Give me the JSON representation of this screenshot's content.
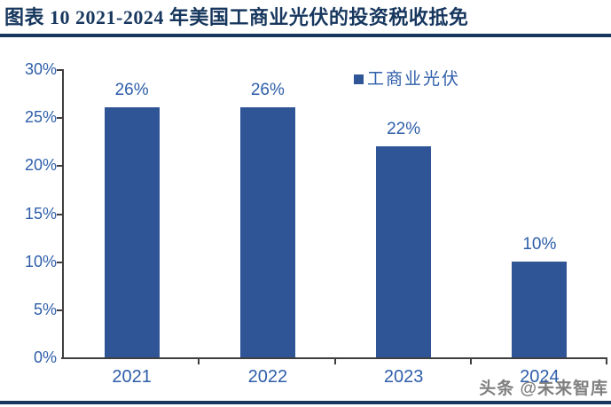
{
  "header": {
    "title": "图表 10   2021-2024 年美国工商业光伏的投资税收抵免"
  },
  "watermark": {
    "text": "头条 @未来智库"
  },
  "colors": {
    "title_navy": "#17375E",
    "bar_fill": "#2F5597",
    "label_blue": "#2E5EA9",
    "axis_gray": "#3f3f3f",
    "watermark_gray": "#696969"
  },
  "chart_data": {
    "type": "bar",
    "categories": [
      "2021",
      "2022",
      "2023",
      "2024"
    ],
    "values": [
      26,
      26,
      22,
      10
    ],
    "data_labels": [
      "26%",
      "26%",
      "22%",
      "10%"
    ],
    "series_name": "工商业光伏",
    "legend": {
      "label": "工商业光伏",
      "position": "top-inside-right"
    },
    "title": "",
    "xlabel": "",
    "ylabel": "",
    "ylim": [
      0,
      30
    ],
    "ytick_step": 5,
    "ytick_labels": [
      "0%",
      "5%",
      "10%",
      "15%",
      "20%",
      "25%",
      "30%"
    ],
    "grid": false
  }
}
